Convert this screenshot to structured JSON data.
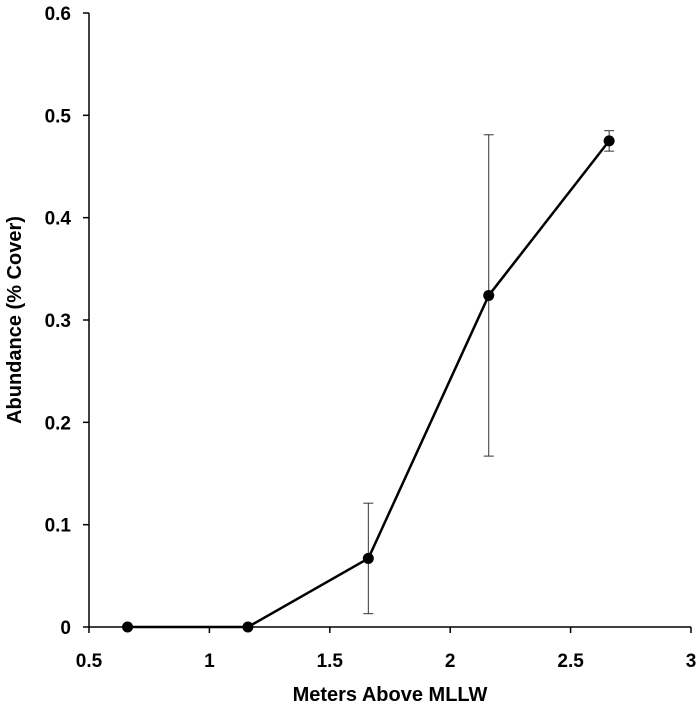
{
  "chart_data": {
    "type": "line",
    "xlabel": "Meters Above MLLW",
    "ylabel": "Abundance (% Cover)",
    "xlim": [
      0.5,
      3
    ],
    "ylim": [
      0,
      0.6
    ],
    "xticks": [
      0.5,
      1,
      1.5,
      2,
      2.5,
      3
    ],
    "yticks": [
      0,
      0.1,
      0.2,
      0.3,
      0.4,
      0.5,
      0.6
    ],
    "xtick_labels": [
      "0.5",
      "1",
      "1.5",
      "2",
      "2.5",
      "3"
    ],
    "ytick_labels": [
      "0",
      "0.1",
      "0.2",
      "0.3",
      "0.4",
      "0.5",
      "0.6"
    ],
    "grid": false,
    "legend": "none",
    "series": [
      {
        "x": [
          0.66,
          1.16,
          1.66,
          2.16,
          2.66
        ],
        "y": [
          0.0,
          0.0,
          0.067,
          0.324,
          0.475
        ],
        "error": [
          0.0,
          0.0,
          0.054,
          0.157,
          0.01
        ],
        "color": "#000000"
      }
    ]
  }
}
